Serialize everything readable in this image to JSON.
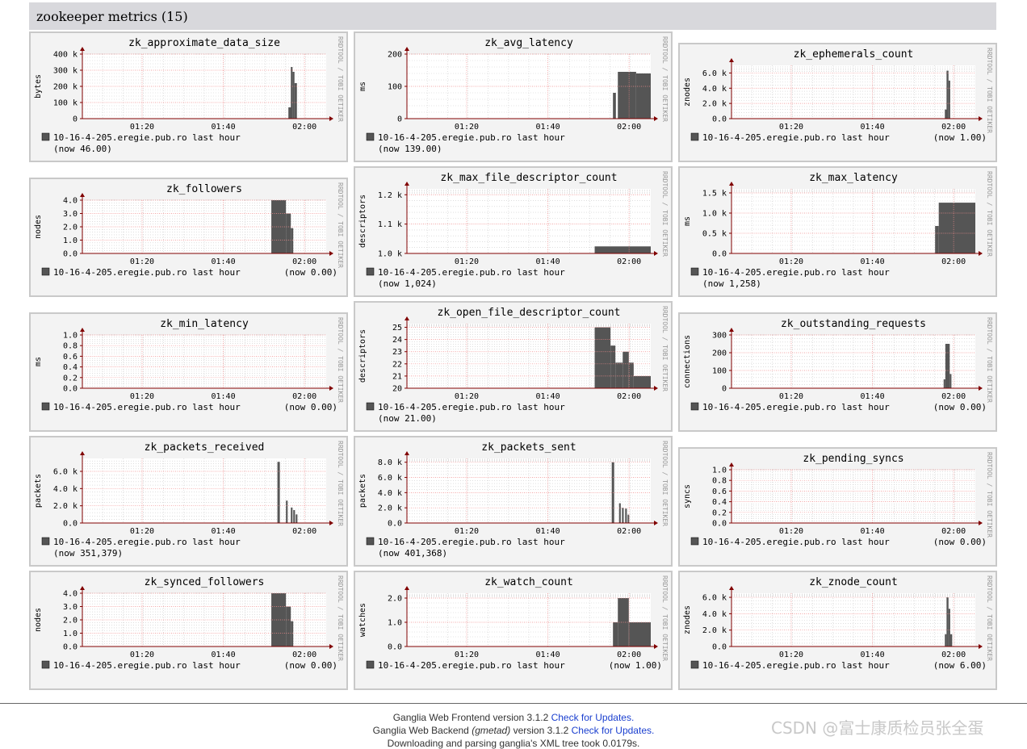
{
  "header": {
    "title": "zookeeper metrics (15)"
  },
  "graph_common": {
    "host": "10-16-4-205.eregie.pub.ro last hour",
    "vendor": "RRDTOOL / TOBI OETIKER",
    "x_ticks": [
      "01:20",
      "01:40",
      "02:00"
    ],
    "colors": {
      "area": "#555555",
      "grid_major": "#f08a8a",
      "grid_minor": "#cccccc",
      "axis": "#800000",
      "plot_bg": "#ffffff"
    }
  },
  "graphs": [
    {
      "title": "zk_approximate_data_size",
      "ylabel": "bytes",
      "now": "(now 46.00)",
      "now_newline": true,
      "y_ticks": [
        "0",
        "100 k",
        "200 k",
        "300 k",
        "400 k"
      ],
      "y_max": 400000,
      "series": [
        [
          0.845,
          0,
          70000
        ],
        [
          0.855,
          320000,
          0.862
        ],
        [
          0.862,
          290000,
          0.87
        ],
        [
          0.87,
          220000,
          0.88
        ]
      ]
    },
    {
      "title": "zk_avg_latency",
      "ylabel": "ms",
      "now": "(now 139.00)",
      "now_newline": true,
      "y_ticks": [
        "0",
        "100",
        "200"
      ],
      "y_max": 200,
      "series": [
        [
          0.845,
          0,
          80
        ],
        [
          0.865,
          145,
          0.94
        ],
        [
          0.94,
          140,
          1.0
        ]
      ]
    },
    {
      "title": "zk_ephemerals_count",
      "ylabel": "znodes",
      "now": "(now 1.00)",
      "now_newline": false,
      "y_ticks": [
        "0.0",
        "2.0 k",
        "4.0 k",
        "6.0 k"
      ],
      "y_max": 7000,
      "series": [
        [
          0.875,
          0,
          1200
        ],
        [
          0.882,
          6300,
          0.89
        ],
        [
          0.89,
          5000,
          0.897
        ]
      ]
    },
    {
      "title": "zk_followers",
      "ylabel": "nodes",
      "now": "(now 0.00)",
      "now_newline": false,
      "y_ticks": [
        "0.0",
        "1.0",
        "2.0",
        "3.0",
        "4.0"
      ],
      "y_max": 4,
      "series": [
        [
          0.775,
          4,
          0.835
        ],
        [
          0.835,
          3.0,
          0.855
        ],
        [
          0.855,
          1.9,
          0.865
        ]
      ]
    },
    {
      "title": "zk_max_file_descriptor_count",
      "ylabel": "descriptors",
      "now": "(now 1,024)",
      "now_newline": true,
      "y_ticks": [
        "1.0 k",
        "1.1 k",
        "1.2 k"
      ],
      "y_min": 1000,
      "y_max": 1220,
      "series": [
        [
          0.77,
          1024,
          1.0
        ]
      ]
    },
    {
      "title": "zk_max_latency",
      "ylabel": "ms",
      "now": "(now 1,258)",
      "now_newline": true,
      "y_ticks": [
        "0.0",
        "0.5 k",
        "1.0 k",
        "1.5 k"
      ],
      "y_max": 1600,
      "series": [
        [
          0.835,
          680,
          0.85
        ],
        [
          0.85,
          1258,
          1.0
        ]
      ]
    },
    {
      "title": "zk_min_latency",
      "ylabel": "ms",
      "now": "(now 0.00)",
      "now_newline": false,
      "y_ticks": [
        "0.0",
        "0.2",
        "0.4",
        "0.6",
        "0.8",
        "1.0"
      ],
      "y_max": 1.0,
      "series": []
    },
    {
      "title": "zk_open_file_descriptor_count",
      "ylabel": "descriptors",
      "now": "(now 21.00)",
      "now_newline": true,
      "y_ticks": [
        "20",
        "21",
        "22",
        "23",
        "24",
        "25"
      ],
      "y_min": 20,
      "y_max": 25.3,
      "series": [
        [
          0.77,
          25,
          0.835
        ],
        [
          0.835,
          23.5,
          0.855
        ],
        [
          0.855,
          22.1,
          0.885
        ],
        [
          0.885,
          23.0,
          0.91
        ],
        [
          0.91,
          22.1,
          0.93
        ],
        [
          0.93,
          21.0,
          1.0
        ]
      ]
    },
    {
      "title": "zk_outstanding_requests",
      "ylabel": "connections",
      "now": "(now 0.00)",
      "now_newline": false,
      "y_ticks": [
        "0",
        "100",
        "200",
        "300"
      ],
      "y_max": 300,
      "series": [
        [
          0.87,
          50,
          0.877
        ],
        [
          0.877,
          250,
          0.895
        ],
        [
          0.895,
          80,
          0.902
        ]
      ]
    },
    {
      "title": "zk_packets_received",
      "ylabel": "packets",
      "now": "(now 351,379)",
      "now_newline": true,
      "y_ticks": [
        "0.0",
        "2.0 k",
        "4.0 k",
        "6.0 k"
      ],
      "y_max": 7500,
      "series": [
        [
          0.8,
          7100,
          0.81
        ],
        [
          0.835,
          2600,
          0.842
        ],
        [
          0.855,
          1800,
          0.862
        ],
        [
          0.865,
          1500,
          0.872
        ],
        [
          0.875,
          1000,
          0.882
        ]
      ]
    },
    {
      "title": "zk_packets_sent",
      "ylabel": "packets",
      "now": "(now 401,368)",
      "now_newline": true,
      "y_ticks": [
        "0.0",
        "2.0 k",
        "4.0 k",
        "6.0 k",
        "8.0 k"
      ],
      "y_max": 8500,
      "series": [
        [
          0.84,
          8000,
          0.85
        ],
        [
          0.87,
          2600,
          0.877
        ],
        [
          0.882,
          2000,
          0.889
        ],
        [
          0.895,
          1900,
          0.902
        ],
        [
          0.905,
          1100,
          0.912
        ]
      ]
    },
    {
      "title": "zk_pending_syncs",
      "ylabel": "syncs",
      "now": "(now 0.00)",
      "now_newline": false,
      "y_ticks": [
        "0.0",
        "0.2",
        "0.4",
        "0.6",
        "0.8",
        "1.0"
      ],
      "y_max": 1.0,
      "series": []
    },
    {
      "title": "zk_synced_followers",
      "ylabel": "nodes",
      "now": "(now 0.00)",
      "now_newline": false,
      "y_ticks": [
        "0.0",
        "1.0",
        "2.0",
        "3.0",
        "4.0"
      ],
      "y_max": 4,
      "series": [
        [
          0.775,
          4,
          0.835
        ],
        [
          0.835,
          3.0,
          0.855
        ],
        [
          0.855,
          1.9,
          0.865
        ]
      ]
    },
    {
      "title": "zk_watch_count",
      "ylabel": "watches",
      "now": "(now 1.00)",
      "now_newline": false,
      "y_ticks": [
        "0.0",
        "1.0",
        "2.0"
      ],
      "y_max": 2.2,
      "series": [
        [
          0.845,
          1.0,
          0.865
        ],
        [
          0.865,
          2.0,
          0.91
        ],
        [
          0.91,
          1.0,
          1.0
        ]
      ]
    },
    {
      "title": "zk_znode_count",
      "ylabel": "znodes",
      "now": "(now 6.00)",
      "now_newline": false,
      "y_ticks": [
        "0.0",
        "2.0 k",
        "4.0 k",
        "6.0 k"
      ],
      "y_max": 6500,
      "series": [
        [
          0.875,
          1500,
          0.882
        ],
        [
          0.882,
          6000,
          0.89
        ],
        [
          0.89,
          4600,
          0.897
        ],
        [
          0.897,
          1500,
          0.905
        ]
      ]
    }
  ],
  "footer": {
    "line1_prefix": "Ganglia Web Frontend version 3.1.2 ",
    "line1_link": "Check for Updates.",
    "line2_prefix": "Ganglia Web Backend ",
    "line2_italic": "(gmetad)",
    "line2_middle": " version 3.1.2 ",
    "line2_link": "Check for Updates.",
    "line3": "Downloading and parsing ganglia's XML tree took 0.0179s."
  },
  "watermark": "CSDN @富士康质检员张全蛋"
}
